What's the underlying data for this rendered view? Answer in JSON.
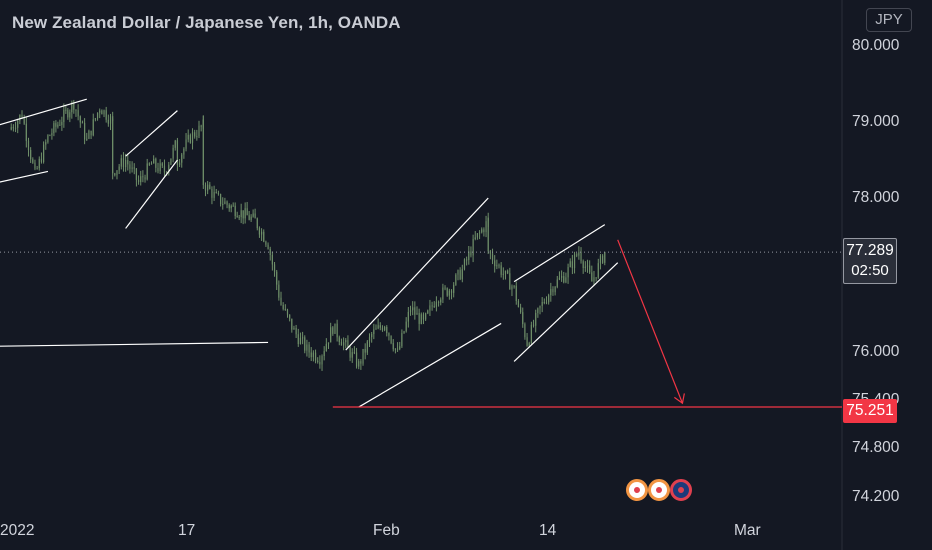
{
  "header": {
    "title": "New Zealand Dollar / Japanese Yen, 1h, OANDA",
    "currency": "JPY"
  },
  "colors": {
    "background": "#141823",
    "candle": "#6f8f69",
    "drawing_line": "#ffffff",
    "target_line": "#f23645",
    "last_price_line": "#9598a1"
  },
  "chart_data": {
    "type": "candlestick",
    "symbol": "NZDJPY",
    "interval": "1h",
    "y_ticks": [
      "80.000",
      "79.000",
      "78.000",
      "76.000",
      "75.400",
      "74.800",
      "74.200"
    ],
    "x_ticks": [
      "2022",
      "17",
      "Feb",
      "14",
      "Mar"
    ],
    "last_price": "77.289",
    "countdown": "02:50",
    "target_price": "75.251",
    "close_path": [
      [
        "Jan 4",
        78.9
      ],
      [
        "Jan 5",
        79.1
      ],
      [
        "Jan 6",
        78.3
      ],
      [
        "Jan 7",
        78.8
      ],
      [
        "Jan 9",
        79.25
      ],
      [
        "Jan 10",
        78.75
      ],
      [
        "Jan 11",
        79.2
      ],
      [
        "Jan 12",
        79.0
      ],
      [
        "Jan 12",
        78.35
      ],
      [
        "Jan 13",
        78.5
      ],
      [
        "Jan 14",
        78.2
      ],
      [
        "Jan 15",
        78.45
      ],
      [
        "Jan 16",
        78.35
      ],
      [
        "Jan 17",
        78.75
      ],
      [
        "Jan 17",
        78.5
      ],
      [
        "Jan 18",
        78.8
      ],
      [
        "Jan 19",
        78.95
      ],
      [
        "Jan 19",
        78.2
      ],
      [
        "Jan 20",
        78.0
      ],
      [
        "Jan 21",
        77.9
      ],
      [
        "Jan 23",
        77.7
      ],
      [
        "Jan 24",
        77.4
      ],
      [
        "Jan 25",
        76.6
      ],
      [
        "Jan 26",
        76.25
      ],
      [
        "Jan 27",
        76.0
      ],
      [
        "Jan 28",
        75.9
      ],
      [
        "Jan 29",
        76.3
      ],
      [
        "Jan 30",
        76.05
      ],
      [
        "Jan 31",
        75.8
      ],
      [
        "Feb 1",
        76.2
      ],
      [
        "Feb 2",
        76.35
      ],
      [
        "Feb 3",
        75.95
      ],
      [
        "Feb 4",
        76.55
      ],
      [
        "Feb 5",
        76.35
      ],
      [
        "Feb 6",
        76.7
      ],
      [
        "Feb 7",
        76.8
      ],
      [
        "Feb 8",
        77.05
      ],
      [
        "Feb 9",
        77.45
      ],
      [
        "Feb 10",
        77.7
      ],
      [
        "Feb 10",
        77.3
      ],
      [
        "Feb 11",
        77.05
      ],
      [
        "Feb 12",
        76.8
      ],
      [
        "Feb 13",
        76.1
      ],
      [
        "Feb 14",
        76.55
      ],
      [
        "Feb 15",
        76.85
      ],
      [
        "Feb 16",
        77.0
      ],
      [
        "Feb 17",
        77.3
      ],
      [
        "Feb 18",
        76.9
      ],
      [
        "Feb 19",
        77.289
      ]
    ],
    "drawings": [
      {
        "kind": "channel",
        "from": [
          "Jan 3",
          78.95
        ],
        "to": [
          "Jan 10",
          79.3
        ]
      },
      {
        "kind": "channel",
        "from": [
          "Jan 3",
          78.2
        ],
        "to": [
          "Jan 7",
          78.35
        ]
      },
      {
        "kind": "channel",
        "from": [
          "Jan 13",
          78.55
        ],
        "to": [
          "Jan 17",
          79.15
        ]
      },
      {
        "kind": "channel",
        "from": [
          "Jan 13",
          77.6
        ],
        "to": [
          "Jan 17",
          78.5
        ]
      },
      {
        "kind": "horizontal",
        "from": [
          "Jan 3",
          76.05
        ],
        "to": [
          "Jan 24",
          76.1
        ]
      },
      {
        "kind": "channel",
        "from": [
          "Jan 30",
          76.0
        ],
        "to": [
          "Feb 10",
          78.0
        ]
      },
      {
        "kind": "channel",
        "from": [
          "Jan 31",
          75.25
        ],
        "to": [
          "Feb 11",
          76.35
        ]
      },
      {
        "kind": "channel",
        "from": [
          "Feb 12",
          76.9
        ],
        "to": [
          "Feb 19",
          77.65
        ]
      },
      {
        "kind": "channel",
        "from": [
          "Feb 12",
          75.85
        ],
        "to": [
          "Feb 20",
          77.15
        ]
      },
      {
        "kind": "target",
        "value": 75.251
      },
      {
        "kind": "arrow",
        "from": [
          "Feb 20",
          77.45
        ],
        "to": [
          "Feb 25",
          75.3
        ]
      }
    ]
  }
}
